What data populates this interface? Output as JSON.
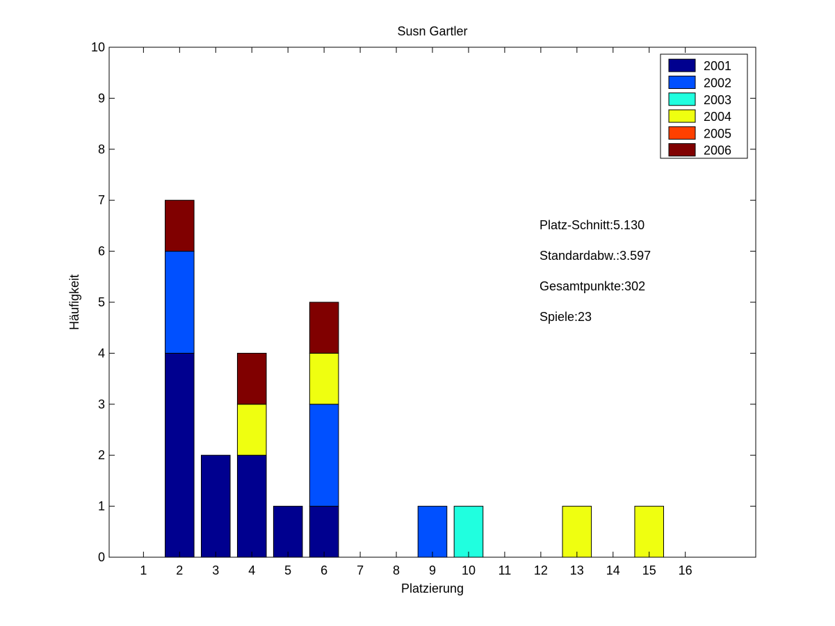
{
  "chart_data": {
    "type": "bar",
    "stacked": true,
    "title": "Susn Gartler",
    "xlabel": "Platzierung",
    "ylabel": "Häufigkeit",
    "categories": [
      1,
      2,
      3,
      4,
      5,
      6,
      7,
      8,
      9,
      10,
      11,
      12,
      13,
      14,
      15,
      16
    ],
    "xticklabels": [
      "1",
      "2",
      "3",
      "4",
      "5",
      "6",
      "7",
      "8",
      "9",
      "10",
      "11",
      "12",
      "13",
      "14",
      "15",
      "16"
    ],
    "xlim": [
      0.05,
      17.95
    ],
    "ylim": [
      0,
      10
    ],
    "yticks": [
      0,
      1,
      2,
      3,
      4,
      5,
      6,
      7,
      8,
      9,
      10
    ],
    "yticklabels": [
      "0",
      "1",
      "2",
      "3",
      "4",
      "5",
      "6",
      "7",
      "8",
      "9",
      "10"
    ],
    "grid": false,
    "legend_position": "top-right",
    "series": [
      {
        "name": "2001",
        "color": "#00008F",
        "values": [
          0,
          4,
          2,
          2,
          1,
          1,
          0,
          0,
          0,
          0,
          0,
          0,
          0,
          0,
          0,
          0
        ]
      },
      {
        "name": "2002",
        "color": "#0050FF",
        "values": [
          0,
          2,
          0,
          0,
          0,
          2,
          0,
          0,
          1,
          0,
          0,
          0,
          0,
          0,
          0,
          0
        ]
      },
      {
        "name": "2003",
        "color": "#20FFDF",
        "values": [
          0,
          0,
          0,
          0,
          0,
          0,
          0,
          0,
          0,
          1,
          0,
          0,
          0,
          0,
          0,
          0
        ]
      },
      {
        "name": "2004",
        "color": "#EFFF10",
        "values": [
          0,
          0,
          0,
          1,
          0,
          1,
          0,
          0,
          0,
          0,
          0,
          0,
          1,
          0,
          1,
          0
        ]
      },
      {
        "name": "2005",
        "color": "#FF4000",
        "values": [
          0,
          0,
          0,
          0,
          0,
          0,
          0,
          0,
          0,
          0,
          0,
          0,
          0,
          0,
          0,
          0
        ]
      },
      {
        "name": "2006",
        "color": "#800000",
        "values": [
          0,
          1,
          0,
          1,
          0,
          1,
          0,
          0,
          0,
          0,
          0,
          0,
          0,
          0,
          0,
          0
        ]
      }
    ],
    "annotations": [
      "Platz-Schnitt:5.130",
      "Standardabw.:3.597",
      "Gesamtpunkte:302",
      "Spiele:23"
    ]
  }
}
